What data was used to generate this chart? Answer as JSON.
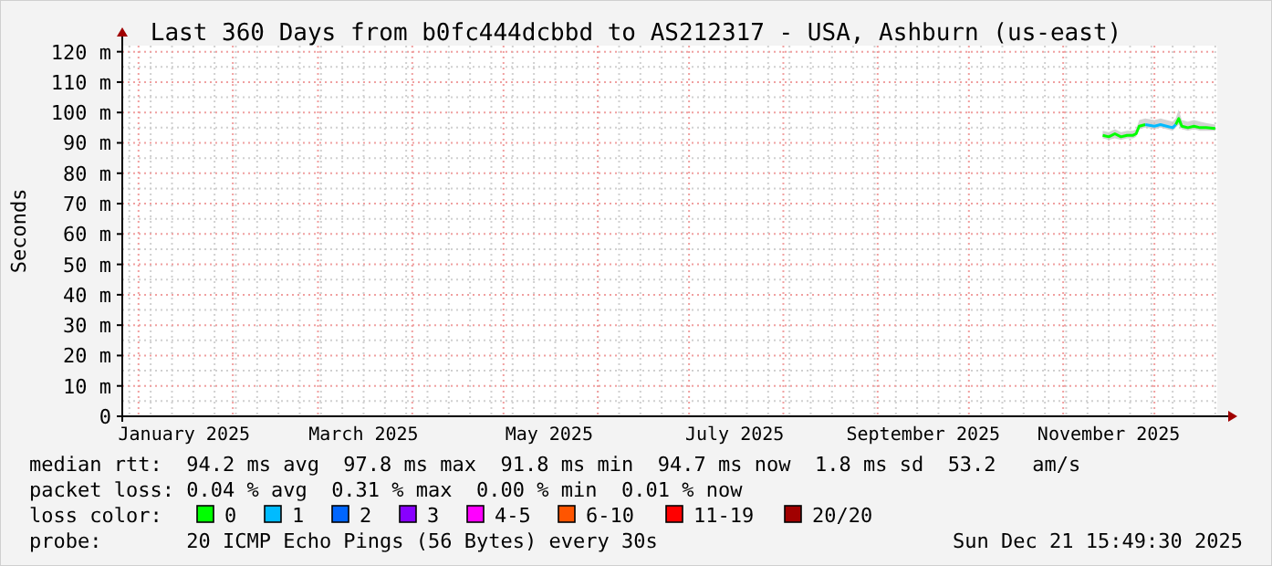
{
  "chart_data": {
    "type": "line",
    "title": "Last 360 Days from b0fc444dcbbd to AS212317 - USA, Ashburn (us-east)",
    "ylabel": "Seconds",
    "x": [
      "2025-11-14",
      "2025-11-16",
      "2025-11-18",
      "2025-11-20",
      "2025-11-22",
      "2025-11-24",
      "2025-11-25",
      "2025-11-26",
      "2025-11-28",
      "2025-12-01",
      "2025-12-03",
      "2025-12-05",
      "2025-12-07",
      "2025-12-08",
      "2025-12-09",
      "2025-12-10",
      "2025-12-12",
      "2025-12-14",
      "2025-12-16",
      "2025-12-18",
      "2025-12-21"
    ],
    "series": [
      {
        "name": "0",
        "color": "#00ff00",
        "values": [
          92.5,
          92,
          93,
          92,
          92.5,
          92.5,
          93,
          95.5,
          96,
          null,
          null,
          null,
          null,
          96,
          98,
          95.5,
          95,
          95.5,
          95,
          95,
          94.7
        ],
        "lower": [
          91.5,
          91,
          91.5,
          91,
          91.5,
          91.5,
          92,
          94.5,
          95,
          94.5,
          95,
          94.5,
          94,
          95,
          96,
          94.5,
          94,
          94.5,
          94,
          94,
          94
        ],
        "upper": [
          94,
          93.5,
          94.5,
          93.5,
          94,
          94,
          94.5,
          97.5,
          98,
          97.5,
          98,
          97.5,
          97,
          98,
          101,
          97.5,
          97,
          97.5,
          97,
          96.5,
          96
        ]
      },
      {
        "name": "1",
        "color": "#00bbff",
        "values": [
          null,
          null,
          null,
          null,
          null,
          null,
          null,
          null,
          96,
          95.5,
          96,
          95.5,
          95,
          96,
          null,
          null,
          null,
          null,
          null,
          null,
          null
        ]
      },
      {
        "name": "2",
        "color": "#0066ff",
        "values": [
          null,
          null,
          null,
          null,
          null,
          null,
          null,
          null,
          null,
          null,
          null,
          null,
          null,
          null,
          null,
          null,
          null,
          null,
          null,
          null,
          null
        ]
      },
      {
        "name": "3",
        "color": "#8800ff",
        "values": [
          null,
          null,
          null,
          null,
          null,
          null,
          null,
          null,
          null,
          null,
          null,
          null,
          null,
          null,
          null,
          null,
          null,
          null,
          null,
          null,
          null
        ]
      },
      {
        "name": "4-5",
        "color": "#ff00ff",
        "values": [
          null,
          null,
          null,
          null,
          null,
          null,
          null,
          null,
          null,
          null,
          null,
          null,
          null,
          null,
          null,
          null,
          null,
          null,
          null,
          null,
          null
        ]
      },
      {
        "name": "6-10",
        "color": "#ff5500",
        "values": [
          null,
          null,
          null,
          null,
          null,
          null,
          null,
          null,
          null,
          null,
          null,
          null,
          null,
          null,
          null,
          null,
          null,
          null,
          null,
          null,
          null
        ]
      },
      {
        "name": "11-19",
        "color": "#ff0000",
        "values": [
          null,
          null,
          null,
          null,
          null,
          null,
          null,
          null,
          null,
          null,
          null,
          null,
          null,
          null,
          null,
          null,
          null,
          null,
          null,
          null,
          null
        ]
      },
      {
        "name": "20/20",
        "color": "#a10000",
        "values": [
          null,
          null,
          null,
          null,
          null,
          null,
          null,
          null,
          null,
          null,
          null,
          null,
          null,
          null,
          null,
          null,
          null,
          null,
          null,
          null,
          null
        ]
      }
    ],
    "legend": "bottom",
    "legend_title": "loss color:",
    "grid": true,
    "xlim": [
      "2024-12-26T15:49",
      "2025-12-21T15:49"
    ],
    "xticks": [
      {
        "value": "2025-01-16",
        "label": "January 2025"
      },
      {
        "value": "2025-03-16",
        "label": "March 2025"
      },
      {
        "value": "2025-05-16",
        "label": "May 2025"
      },
      {
        "value": "2025-07-16",
        "label": "July 2025"
      },
      {
        "value": "2025-09-16",
        "label": "September 2025"
      },
      {
        "value": "2025-11-16",
        "label": "November 2025"
      }
    ],
    "ylim": [
      0,
      122
    ],
    "yticks": [
      0,
      {
        "value": 10,
        "label": "10 m"
      },
      {
        "value": 20,
        "label": "20 m"
      },
      {
        "value": 30,
        "label": "30 m"
      },
      {
        "value": 40,
        "label": "40 m"
      },
      {
        "value": 50,
        "label": "50 m"
      },
      {
        "value": 60,
        "label": "60 m"
      },
      {
        "value": 70,
        "label": "70 m"
      },
      {
        "value": 80,
        "label": "80 m"
      },
      {
        "value": 90,
        "label": "90 m"
      },
      {
        "value": 100,
        "label": "100 m"
      },
      {
        "value": 110,
        "label": "110 m"
      },
      {
        "value": 120,
        "label": "120 m"
      }
    ],
    "annotations": [
      "median rtt:  94.2 ms avg  97.8 ms max  91.8 ms min  94.7 ms now  1.8 ms sd  53.2   am/s",
      "packet loss: 0.04 % avg  0.31 % max  0.00 % min  0.01 % now",
      "probe:       20 ICMP Echo Pings (56 Bytes) every 30s",
      "Sun Dec 21 15:49:30 2025"
    ]
  }
}
